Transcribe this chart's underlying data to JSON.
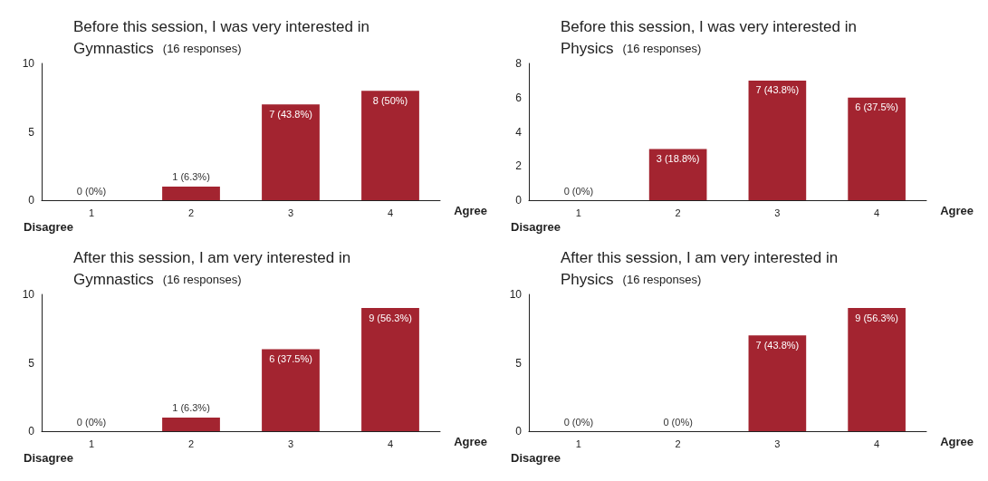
{
  "chart_data": [
    {
      "type": "bar",
      "title": "Before this session, I was very interested in Gymnastics",
      "subtitle": "(16 responses)",
      "categories": [
        "1",
        "2",
        "3",
        "4"
      ],
      "values": [
        0,
        1,
        7,
        8
      ],
      "value_labels": [
        "0 (0%)",
        "1 (6.3%)",
        "7 (43.8%)",
        "8 (50%)"
      ],
      "color": "#a32430",
      "ylim": [
        0,
        10
      ],
      "yticks": [
        0,
        5,
        10
      ],
      "grid": false,
      "annotations": [
        "Disagree",
        "Agree"
      ]
    },
    {
      "type": "bar",
      "title": "Before this session, I was very interested in Physics",
      "subtitle": "(16 responses)",
      "categories": [
        "1",
        "2",
        "3",
        "4"
      ],
      "values": [
        0,
        3,
        7,
        6
      ],
      "value_labels": [
        "0 (0%)",
        "3 (18.8%)",
        "7 (43.8%)",
        "6 (37.5%)"
      ],
      "color": "#a32430",
      "ylim": [
        0,
        8
      ],
      "yticks": [
        0,
        2,
        4,
        6,
        8
      ],
      "grid": false,
      "annotations": [
        "Disagree",
        "Agree"
      ]
    },
    {
      "type": "bar",
      "title": "After this session, I am very interested in Gymnastics",
      "subtitle": "(16 responses)",
      "categories": [
        "1",
        "2",
        "3",
        "4"
      ],
      "values": [
        0,
        1,
        6,
        9
      ],
      "value_labels": [
        "0 (0%)",
        "1 (6.3%)",
        "6 (37.5%)",
        "9 (56.3%)"
      ],
      "color": "#a32430",
      "ylim": [
        0,
        10
      ],
      "yticks": [
        0,
        5,
        10
      ],
      "grid": false,
      "annotations": [
        "Disagree",
        "Agree"
      ]
    },
    {
      "type": "bar",
      "title": "After this session, I am very interested in Physics",
      "subtitle": "(16 responses)",
      "categories": [
        "1",
        "2",
        "3",
        "4"
      ],
      "values": [
        0,
        0,
        7,
        9
      ],
      "value_labels": [
        "0 (0%)",
        "0 (0%)",
        "7 (43.8%)",
        "9 (56.3%)"
      ],
      "color": "#a32430",
      "ylim": [
        0,
        10
      ],
      "yticks": [
        0,
        5,
        10
      ],
      "grid": false,
      "annotations": [
        "Disagree",
        "Agree"
      ]
    }
  ]
}
